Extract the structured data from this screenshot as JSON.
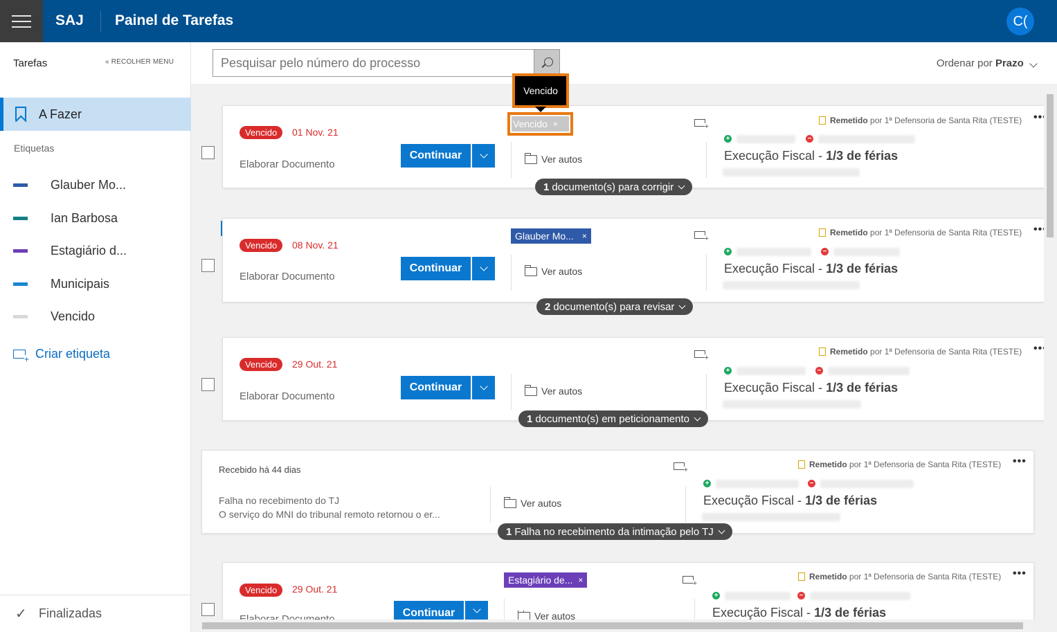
{
  "header": {
    "brand": "SAJ",
    "title": "Painel de Tarefas",
    "avatar": "C("
  },
  "sidebar": {
    "title": "Tarefas",
    "collapse_label": "« RECOLHER MENU",
    "todo_label": "A Fazer",
    "labels_title": "Etiquetas",
    "tags": [
      {
        "label": "Glauber Mo...",
        "color": "#2f5aa8"
      },
      {
        "label": "Ian Barbosa",
        "color": "#137f86"
      },
      {
        "label": "Estagiário d...",
        "color": "#6b3fb8"
      },
      {
        "label": "Municipais",
        "color": "#1b86d0"
      },
      {
        "label": "Vencido",
        "color": "#d8d8d8"
      }
    ],
    "create_label": "Criar etiqueta",
    "done_label": "Finalizadas"
  },
  "search": {
    "placeholder": "Pesquisar pelo número do processo"
  },
  "sort": {
    "prefix": "Ordenar por",
    "value": "Prazo"
  },
  "tooltip": "Vencido",
  "common": {
    "continue": "Continuar",
    "ver_autos": "Ver autos",
    "remetido": "Remetido",
    "por": "por 1ª Defensoria de Santa Rita (TESTE)",
    "exec_prefix": "Execução Fiscal -",
    "exec_suffix": "1/3 de férias",
    "task": "Elaborar Documento",
    "overdue": "Vencido"
  },
  "cards": [
    {
      "date": "01 Nov. 21",
      "tag": "Vencido",
      "pill_count": "1",
      "pill_text": "documento(s) para corrigir"
    },
    {
      "date": "08 Nov. 21",
      "tag": "Glauber Mo...",
      "pill_count": "2",
      "pill_text": "documento(s) para revisar"
    },
    {
      "date": "29 Out. 21",
      "tag": "",
      "pill_count": "1",
      "pill_text": "documento(s) em peticionamento"
    },
    {
      "received": "Recebido há 44 dias",
      "fail_line1": "Falha no recebimento do TJ",
      "fail_line2": "O serviço do MNI do tribunal remoto retornou o er...",
      "pill_count": "1",
      "pill_text": "Falha no recebimento da intimação pelo TJ"
    },
    {
      "date": "29 Out. 21",
      "tag": "Estagiário de...",
      "task_partial": "Elaborar Documento"
    }
  ]
}
